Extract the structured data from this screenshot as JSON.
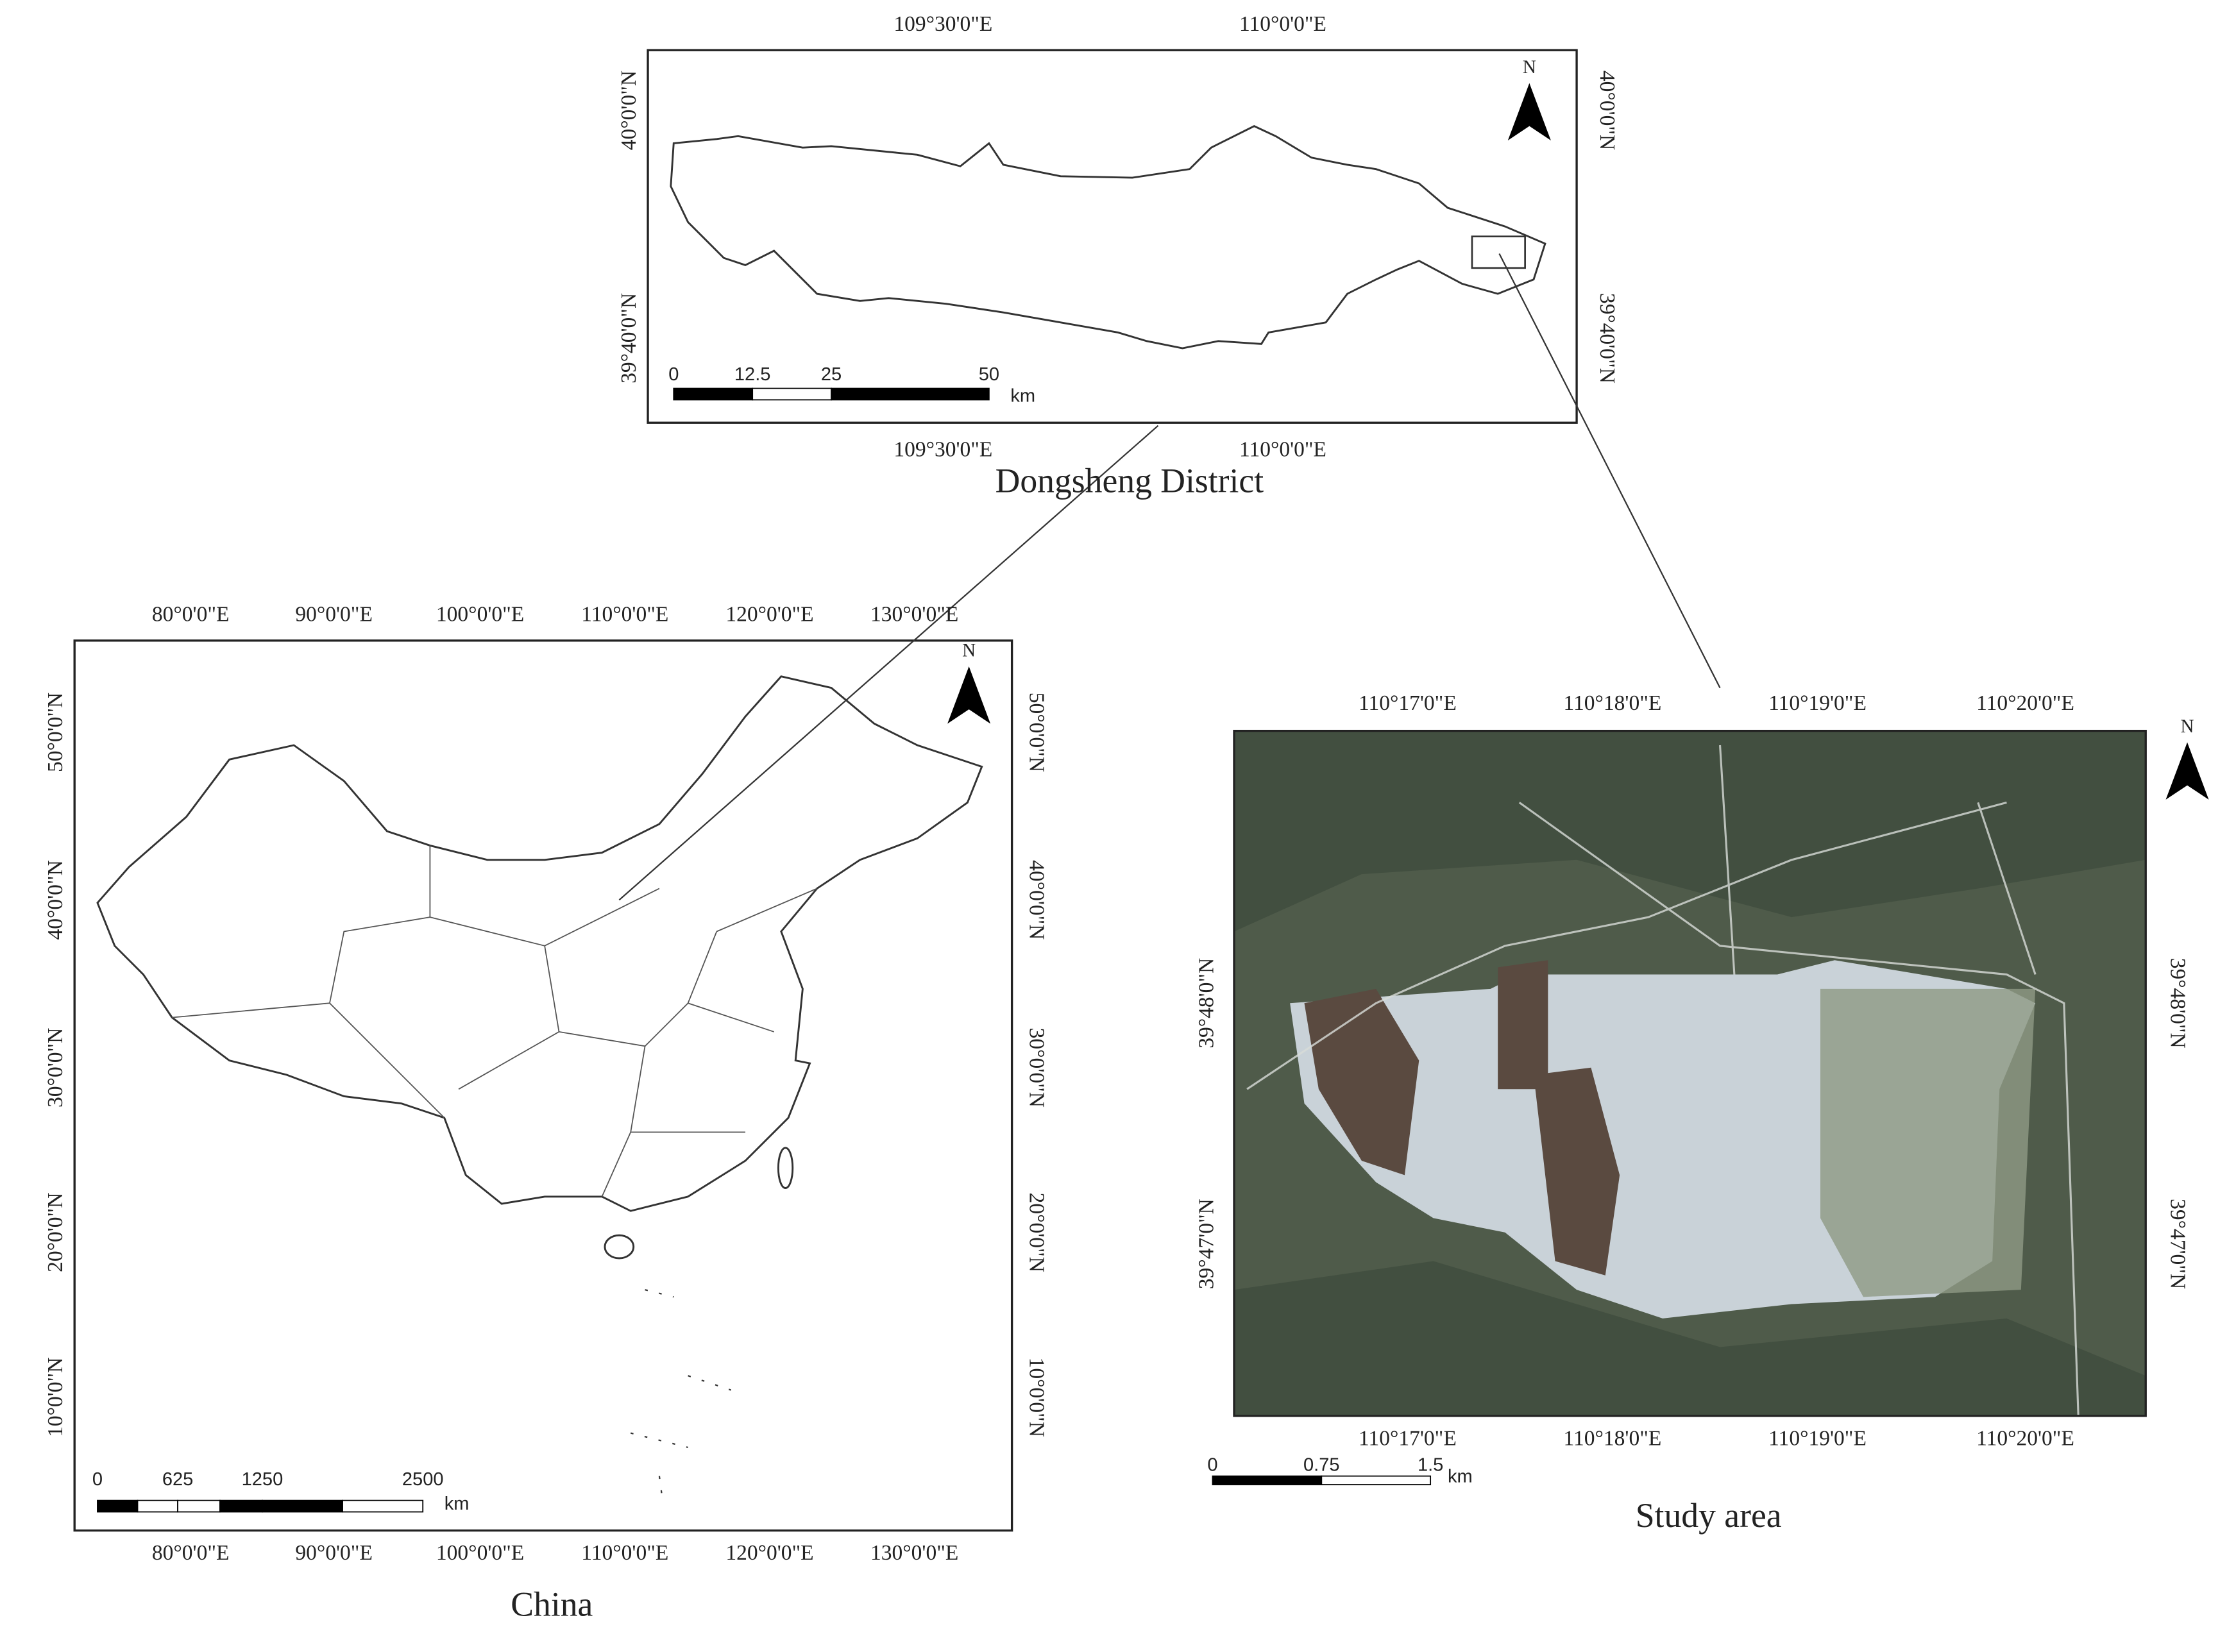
{
  "panels": [
    {
      "title": "Dongsheng District",
      "top_ticks": [
        "109°30'0\"E",
        "110°0'0\"E"
      ],
      "bottom_ticks": [
        "109°30'0\"E",
        "110°0'0\"E"
      ],
      "left_ticks": [
        "40°0'0\"N",
        "39°40'0\"N"
      ],
      "right_ticks": [
        "40°0'0\"N",
        "39°40'0\"N"
      ],
      "scale_labels": [
        "0",
        "12.5",
        "25",
        "50"
      ],
      "scale_unit": "km",
      "north": "N"
    },
    {
      "title": "China",
      "top_ticks": [
        "80°0'0\"E",
        "90°0'0\"E",
        "100°0'0\"E",
        "110°0'0\"E",
        "120°0'0\"E",
        "130°0'0\"E"
      ],
      "bottom_ticks": [
        "80°0'0\"E",
        "90°0'0\"E",
        "100°0'0\"E",
        "110°0'0\"E",
        "120°0'0\"E",
        "130°0'0\"E"
      ],
      "left_ticks": [
        "50°0'0\"N",
        "40°0'0\"N",
        "30°0'0\"N",
        "20°0'0\"N",
        "10°0'0\"N"
      ],
      "right_ticks": [
        "50°0'0\"N",
        "40°0'0\"N",
        "30°0'0\"N",
        "20°0'0\"N",
        "10°0'0\"N"
      ],
      "scale_labels": [
        "0",
        "625",
        "1250",
        "2500"
      ],
      "scale_unit": "km",
      "north": "N"
    },
    {
      "title": "Study area",
      "top_ticks": [
        "110°17'0\"E",
        "110°18'0\"E",
        "110°19'0\"E",
        "110°20'0\"E"
      ],
      "bottom_ticks": [
        "110°17'0\"E",
        "110°18'0\"E",
        "110°19'0\"E",
        "110°20'0\"E"
      ],
      "left_ticks": [
        "39°48'0\"N",
        "39°47'0\"N"
      ],
      "right_ticks": [
        "39°48'0\"N",
        "39°47'0\"N"
      ],
      "scale_labels": [
        "0",
        "0.75",
        "1.5"
      ],
      "scale_unit": "km",
      "north": "N"
    }
  ]
}
